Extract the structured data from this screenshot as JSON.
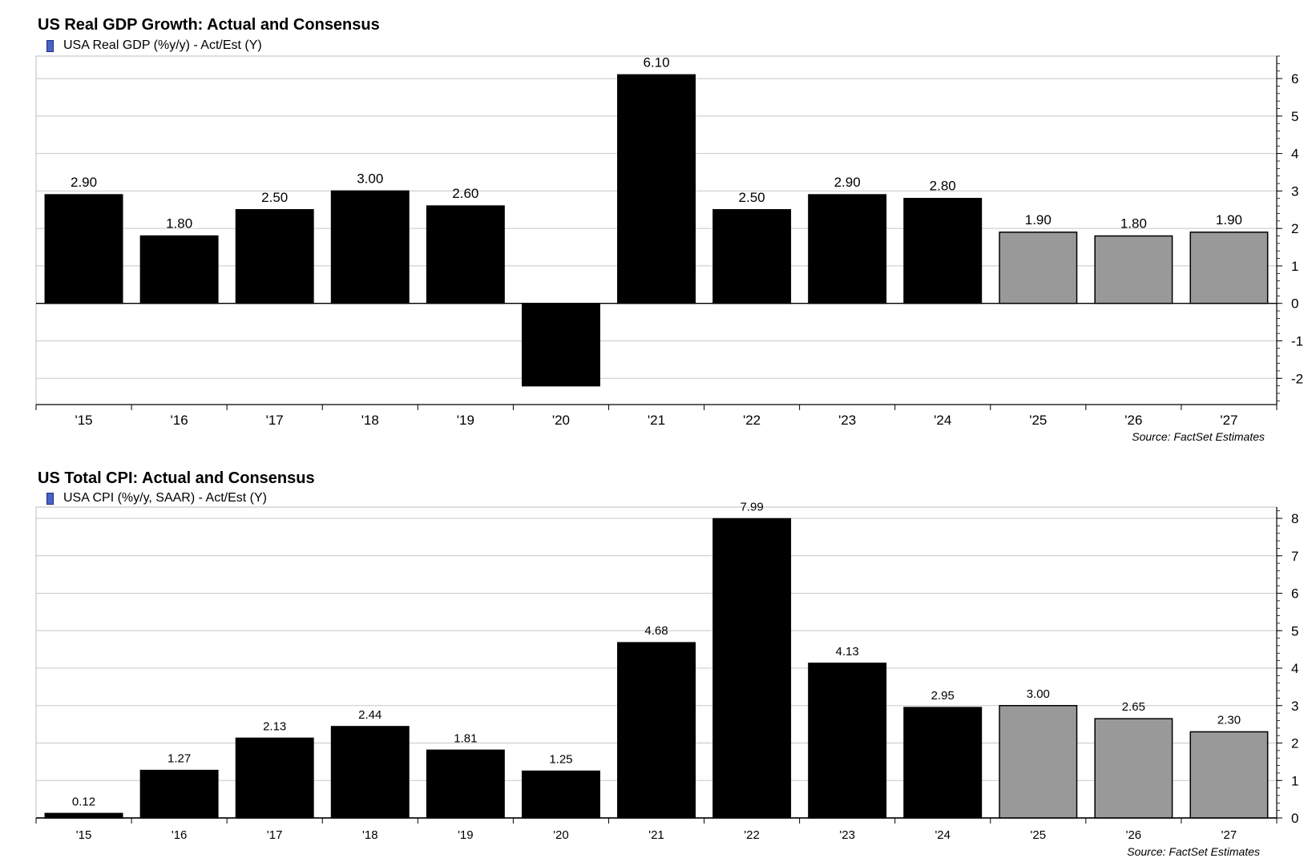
{
  "chart_data": [
    {
      "type": "bar",
      "title": "US Real GDP Growth: Actual and Consensus",
      "legend": "USA Real GDP (%y/y) - Act/Est (Y)",
      "source": "Source: FactSet Estimates",
      "categories": [
        "'15",
        "'16",
        "'17",
        "'18",
        "'19",
        "'20",
        "'21",
        "'22",
        "'23",
        "'24",
        "'25",
        "'26",
        "'27"
      ],
      "series": [
        {
          "name": "USA Real GDP (%y/y) - Act/Est (Y)",
          "values": [
            2.9,
            1.8,
            2.5,
            3.0,
            2.6,
            -2.2,
            6.1,
            2.5,
            2.9,
            2.8,
            1.9,
            1.8,
            1.9
          ]
        }
      ],
      "data_labels": [
        "2.90",
        "1.80",
        "2.50",
        "3.00",
        "2.60",
        "",
        "6.10",
        "2.50",
        "2.90",
        "2.80",
        "1.90",
        "1.80",
        "1.90"
      ],
      "estimate": [
        false,
        false,
        false,
        false,
        false,
        false,
        false,
        false,
        false,
        false,
        true,
        true,
        true
      ],
      "ylim": [
        -2.7,
        6.6
      ],
      "yticks": [
        -2,
        -1,
        0,
        1,
        2,
        3,
        4,
        5,
        6
      ],
      "y_axis_side": "right",
      "grid": true,
      "colors": {
        "actual": "#000000",
        "estimate": "#999999",
        "grid": "#c8c8c8",
        "legend_swatch": "#4a63c9"
      }
    },
    {
      "type": "bar",
      "title": "US Total CPI: Actual and Consensus",
      "legend": "USA CPI (%y/y, SAAR) - Act/Est (Y)",
      "source": "Source: FactSet Estimates",
      "categories": [
        "'15",
        "'16",
        "'17",
        "'18",
        "'19",
        "'20",
        "'21",
        "'22",
        "'23",
        "'24",
        "'25",
        "'26",
        "'27"
      ],
      "series": [
        {
          "name": "USA CPI (%y/y, SAAR) - Act/Est (Y)",
          "values": [
            0.12,
            1.27,
            2.13,
            2.44,
            1.81,
            1.25,
            4.68,
            7.99,
            4.13,
            2.95,
            3.0,
            2.65,
            2.3
          ]
        }
      ],
      "data_labels": [
        "0.12",
        "1.27",
        "2.13",
        "2.44",
        "1.81",
        "1.25",
        "4.68",
        "7.99",
        "4.13",
        "2.95",
        "3.00",
        "2.65",
        "2.30"
      ],
      "estimate": [
        false,
        false,
        false,
        false,
        false,
        false,
        false,
        false,
        false,
        false,
        true,
        true,
        true
      ],
      "ylim": [
        0,
        8.3
      ],
      "yticks": [
        0,
        1,
        2,
        3,
        4,
        5,
        6,
        7,
        8
      ],
      "y_axis_side": "right",
      "grid": true,
      "colors": {
        "actual": "#000000",
        "estimate": "#999999",
        "grid": "#c8c8c8",
        "legend_swatch": "#4a63c9"
      }
    }
  ]
}
